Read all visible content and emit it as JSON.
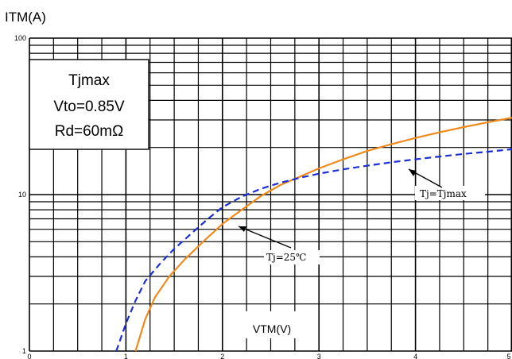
{
  "chart_data": {
    "type": "line",
    "ylabel": "ITM(A)",
    "xlabel": "VTM(V)",
    "x_ticks": [
      "0",
      "1",
      "2",
      "3",
      "4",
      "5"
    ],
    "y_ticks": [
      "1",
      "10",
      "100"
    ],
    "xlim": [
      0,
      5
    ],
    "ylim": [
      1,
      100
    ],
    "y_scale": "log",
    "grid": true,
    "box": {
      "line1": "Tjmax",
      "line2": "Vto=0.85V",
      "line3": "Rd=60mΩ"
    },
    "annotations": {
      "tj25": "Tj=25℃",
      "tjmax": "Tj=Tjmax"
    },
    "series": [
      {
        "style": "solid",
        "color": "#f08a1c",
        "x": [
          1.1,
          1.2,
          1.3,
          1.45,
          1.6,
          1.8,
          2.0,
          2.2,
          2.4,
          2.6,
          2.8,
          3.0,
          3.25,
          3.5,
          3.75,
          4.0,
          4.25,
          4.5,
          4.75,
          5.0
        ],
        "y": [
          1.0,
          1.6,
          2.2,
          3.0,
          3.8,
          5.0,
          6.5,
          8.0,
          9.8,
          11.5,
          13.0,
          14.7,
          16.8,
          19.0,
          21.0,
          23.0,
          25.0,
          27.0,
          29.0,
          31.0
        ]
      },
      {
        "style": "dashed",
        "color": "#1a2fd6",
        "x": [
          0.9,
          1.0,
          1.1,
          1.2,
          1.35,
          1.5,
          1.7,
          1.85,
          2.0,
          2.2,
          2.4,
          2.6,
          2.8,
          3.0,
          3.25,
          3.5,
          3.75,
          4.0,
          4.25,
          4.5,
          4.75,
          5.0
        ],
        "y": [
          1.0,
          1.5,
          2.1,
          2.8,
          3.6,
          4.5,
          5.8,
          7.0,
          8.3,
          9.7,
          10.9,
          11.9,
          12.8,
          13.6,
          14.5,
          15.3,
          16.1,
          16.8,
          17.5,
          18.2,
          18.8,
          19.5
        ]
      }
    ]
  }
}
